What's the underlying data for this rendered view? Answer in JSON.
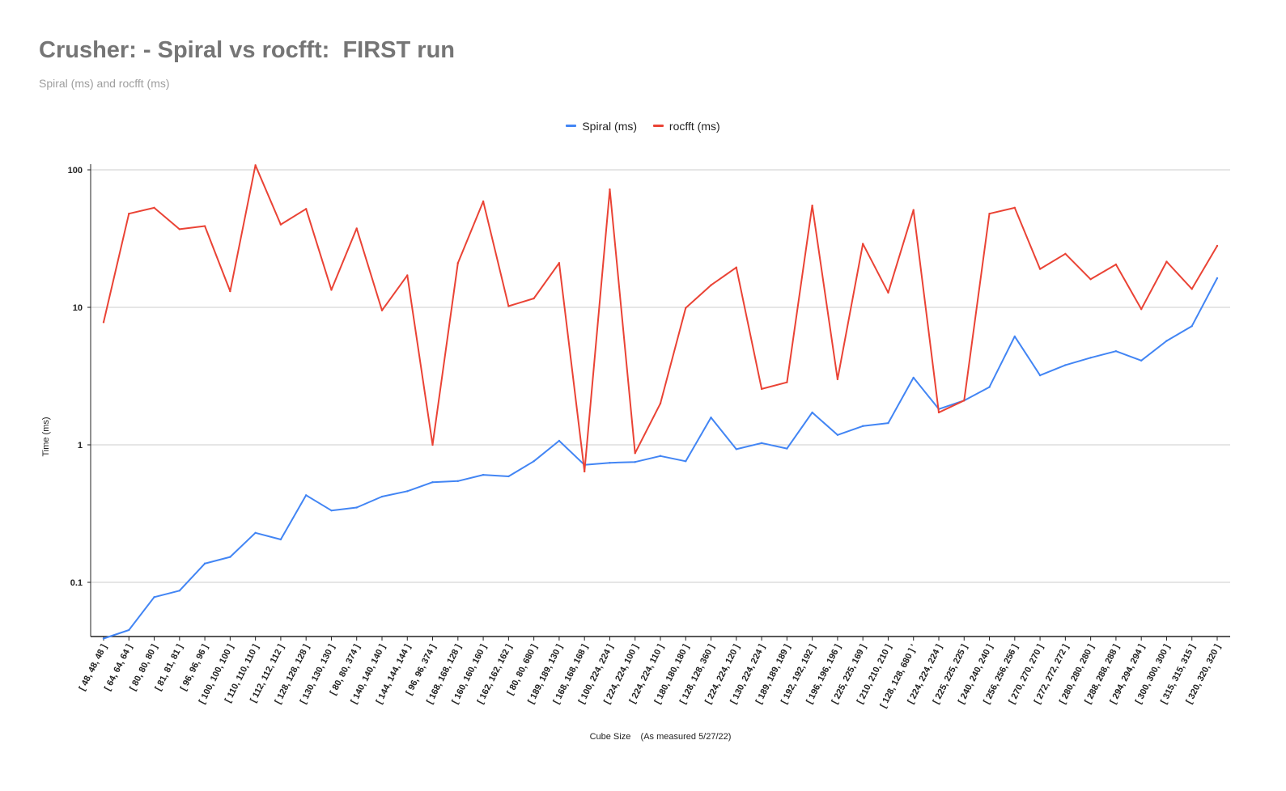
{
  "header": {
    "title": "Crusher: - Spiral vs rocfft:  FIRST run",
    "subtitle": "Spiral (ms) and rocfft (ms)"
  },
  "colors": {
    "spiral": "#4285f4",
    "rocfft": "#ea4335",
    "grid": "#cccccc",
    "axis": "#222222"
  },
  "chart_data": {
    "type": "line",
    "title": "Crusher: - Spiral vs rocfft:  FIRST run",
    "subtitle": "Spiral (ms) and rocfft (ms)",
    "xlabel": "Cube Size    (As measured 5/27/22)",
    "ylabel": "Time (ms)",
    "yscale": "log",
    "ylim": [
      0.04,
      110
    ],
    "yticks": [
      0.1,
      1,
      10,
      100
    ],
    "ytick_labels": [
      "0.1",
      "1",
      "10",
      "100"
    ],
    "grid": true,
    "legend": "top-center",
    "categories": [
      "[ 48, 48, 48 ]",
      "[ 64, 64, 64 ]",
      "[ 80, 80, 80 ]",
      "[ 81, 81, 81 ]",
      "[ 96, 96, 96 ]",
      "[ 100, 100, 100 ]",
      "[ 110, 110, 110 ]",
      "[ 112, 112, 112 ]",
      "[ 128, 128, 128 ]",
      "[ 130, 130, 130 ]",
      "[ 80, 80, 374 ]",
      "[ 140, 140, 140 ]",
      "[ 144, 144, 144 ]",
      "[ 96, 96, 374 ]",
      "[ 168, 168, 128 ]",
      "[ 160, 160, 160 ]",
      "[ 162, 162, 162 ]",
      "[ 80, 80, 680 ]",
      "[ 189, 189, 130 ]",
      "[ 168, 168, 168 ]",
      "[ 100, 224, 224 ]",
      "[ 224, 224, 100 ]",
      "[ 224, 224, 110 ]",
      "[ 180, 180, 180 ]",
      "[ 128, 128, 360 ]",
      "[ 224, 224, 120 ]",
      "[ 130, 224, 224 ]",
      "[ 189, 189, 189 ]",
      "[ 192, 192, 192 ]",
      "[ 196, 196, 196 ]",
      "[ 225, 225, 169 ]",
      "[ 210, 210, 210 ]",
      "[ 128, 128, 680 ] '",
      "[ 224, 224, 224 ]",
      "[ 225, 225, 225 ]",
      "[ 240, 240, 240 ]",
      "[ 256, 256, 256 ]",
      "[ 270, 270, 270 ]",
      "[ 272, 272, 272 ]",
      "[ 280, 280, 280 ]",
      "[ 288, 288, 288 ]",
      "[ 294, 294, 294 ]",
      "[ 300, 300, 300 ]",
      "[ 315, 315, 315 ]",
      "[ 320, 320, 320 ]"
    ],
    "series": [
      {
        "name": "Spiral (ms)",
        "color": "#4285f4",
        "values": [
          0.039,
          0.045,
          0.078,
          0.087,
          0.137,
          0.153,
          0.229,
          0.205,
          0.43,
          0.333,
          0.35,
          0.42,
          0.46,
          0.535,
          0.545,
          0.605,
          0.59,
          0.76,
          1.07,
          0.715,
          0.74,
          0.75,
          0.83,
          0.76,
          1.58,
          0.93,
          1.03,
          0.94,
          1.72,
          1.18,
          1.37,
          1.44,
          3.08,
          1.82,
          2.1,
          2.63,
          6.15,
          3.2,
          3.8,
          4.3,
          4.8,
          4.1,
          5.7,
          7.3,
          16.3
        ]
      },
      {
        "name": "rocfft (ms)",
        "color": "#ea4335",
        "values": [
          7.8,
          48,
          53,
          37,
          39,
          13.1,
          108,
          40,
          52,
          13.4,
          37.5,
          9.5,
          17.1,
          1.0,
          21,
          59,
          10.2,
          11.6,
          21,
          0.64,
          72,
          0.87,
          2.0,
          9.9,
          14.5,
          19.5,
          2.55,
          2.85,
          55,
          3.0,
          29,
          12.8,
          51,
          1.72,
          2.1,
          48,
          53,
          19,
          24.5,
          16,
          20.5,
          9.7,
          21.5,
          13.6,
          28
        ]
      }
    ]
  }
}
